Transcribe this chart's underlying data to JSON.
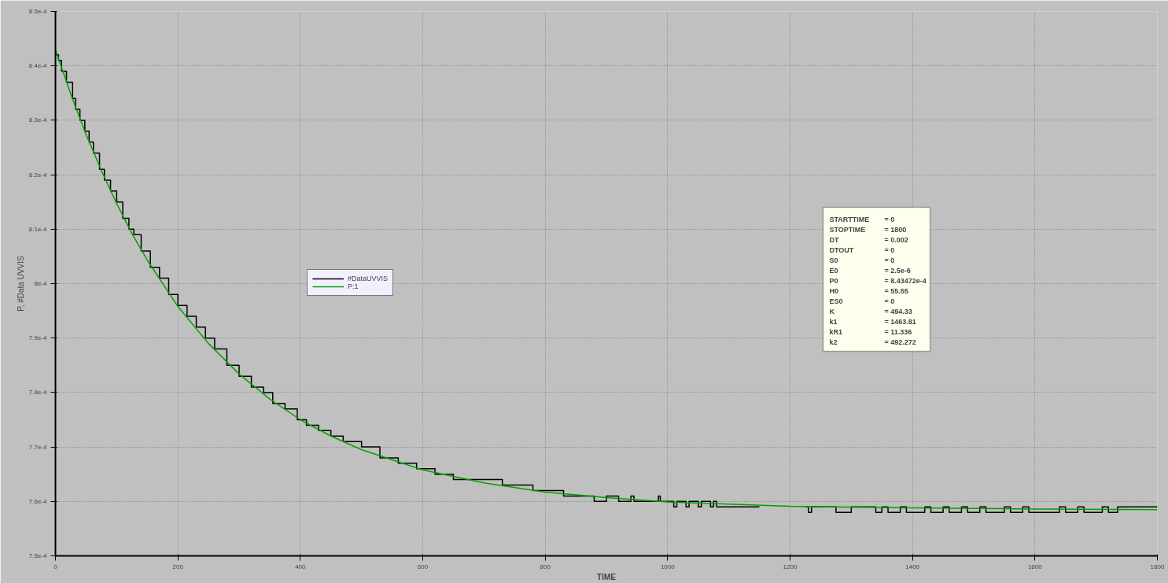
{
  "chart_data": {
    "type": "line",
    "xlabel": "TIME",
    "ylabel": "P, #Data UVVIS",
    "xlim": [
      0,
      1800
    ],
    "xticks": [
      0,
      200,
      400,
      600,
      800,
      1000,
      1200,
      1400,
      1600,
      1800
    ],
    "ylim": [
      0.00075,
      0.00085
    ],
    "yticks": [
      {
        "value": 0.00075,
        "label": "7.5e-4"
      },
      {
        "value": 0.00076,
        "label": "7.6e-4"
      },
      {
        "value": 0.00077,
        "label": "7.7e-4"
      },
      {
        "value": 0.00078,
        "label": "7.8e-4"
      },
      {
        "value": 0.00079,
        "label": "7.9e-4"
      },
      {
        "value": 0.0008,
        "label": "8e-4"
      },
      {
        "value": 0.00081,
        "label": "8.1e-4"
      },
      {
        "value": 0.00082,
        "label": "8.2e-4"
      },
      {
        "value": 0.00083,
        "label": "8.3e-4"
      },
      {
        "value": 0.00084,
        "label": "8.4e-4"
      },
      {
        "value": 0.00085,
        "label": "8.5e-4"
      }
    ],
    "grid": true,
    "legend": "left",
    "marker": "none",
    "line_style": "solid",
    "series": [
      {
        "name": "#DataUVVIS",
        "type": "step",
        "color": "#000000",
        "x": [
          0,
          5,
          10,
          18,
          28,
          33,
          40,
          48,
          55,
          62,
          72,
          80,
          90,
          100,
          110,
          120,
          128,
          140,
          155,
          170,
          185,
          200,
          215,
          230,
          245,
          260,
          280,
          300,
          320,
          340,
          355,
          375,
          395,
          410,
          430,
          450,
          470,
          500,
          530,
          560,
          590,
          620,
          650,
          690,
          730,
          780,
          830,
          880,
          900,
          920,
          940,
          945,
          985,
          988,
          1010,
          1015,
          1030,
          1035,
          1050,
          1055,
          1070,
          1075,
          1080,
          1150,
          1151,
          1225,
          1230,
          1235,
          1275,
          1300,
          1340,
          1350,
          1360,
          1380,
          1390,
          1420,
          1430,
          1450,
          1460,
          1480,
          1490,
          1510,
          1520,
          1550,
          1560,
          1580,
          1590,
          1640,
          1650,
          1670,
          1680,
          1710,
          1720,
          1735,
          1800
        ],
        "values": [
          0.000842,
          0.000841,
          0.000839,
          0.000837,
          0.000834,
          0.000832,
          0.00083,
          0.000828,
          0.000826,
          0.000824,
          0.000821,
          0.000819,
          0.000817,
          0.000815,
          0.000812,
          0.00081,
          0.000809,
          0.000806,
          0.000803,
          0.000801,
          0.000798,
          0.000796,
          0.000794,
          0.000792,
          0.00079,
          0.000788,
          0.000785,
          0.000783,
          0.000781,
          0.00078,
          0.000778,
          0.000777,
          0.000775,
          0.000774,
          0.000773,
          0.000772,
          0.000771,
          0.00077,
          0.000768,
          0.000767,
          0.000766,
          0.000765,
          0.000764,
          0.000764,
          0.000763,
          0.000762,
          0.000761,
          0.00076,
          0.000761,
          0.00076,
          0.000761,
          0.00076,
          0.000761,
          0.00076,
          0.000759,
          0.00076,
          0.000759,
          0.00076,
          0.000759,
          0.00076,
          0.000759,
          0.00076,
          0.000759,
          0.000759,
          null,
          0.000759,
          0.000758,
          0.000759,
          0.000758,
          0.000759,
          0.000758,
          0.000759,
          0.000758,
          0.000759,
          0.000758,
          0.000759,
          0.000758,
          0.000759,
          0.000758,
          0.000759,
          0.000758,
          0.000759,
          0.000758,
          0.000759,
          0.000758,
          0.000759,
          0.000758,
          0.000759,
          0.000758,
          0.000759,
          0.000758,
          0.000759,
          0.000758,
          0.000759,
          0.000759
        ]
      },
      {
        "name": "P:1",
        "color": "#00a000",
        "x": [
          0,
          25,
          50,
          75,
          100,
          125,
          150,
          200,
          250,
          300,
          350,
          400,
          450,
          500,
          600,
          700,
          800,
          900,
          1000,
          1200,
          1400,
          1600,
          1800
        ],
        "values": [
          0.000843,
          0.0008348,
          0.0008274,
          0.0008208,
          0.0008147,
          0.0008092,
          0.0008043,
          0.0007958,
          0.000789,
          0.0007834,
          0.0007788,
          0.000775,
          0.000772,
          0.0007695,
          0.0007658,
          0.0007634,
          0.0007617,
          0.0007607,
          0.0007599,
          0.0007591,
          0.0007588,
          0.0007586,
          0.0007585
        ]
      }
    ],
    "annotations": [
      "STARTTIME = 0",
      "STOPTIME = 1800",
      "DT = 0.002",
      "DTOUT = 0",
      "S0 = 0",
      "E0 = 2.5e-6",
      "P0 = 8.43472e-4",
      "H0 = 55.55",
      "ES0 = 0",
      "K = 494.33",
      "k1 = 1463.81",
      "kR1 = 11.336",
      "k2 = 492.272"
    ]
  }
}
